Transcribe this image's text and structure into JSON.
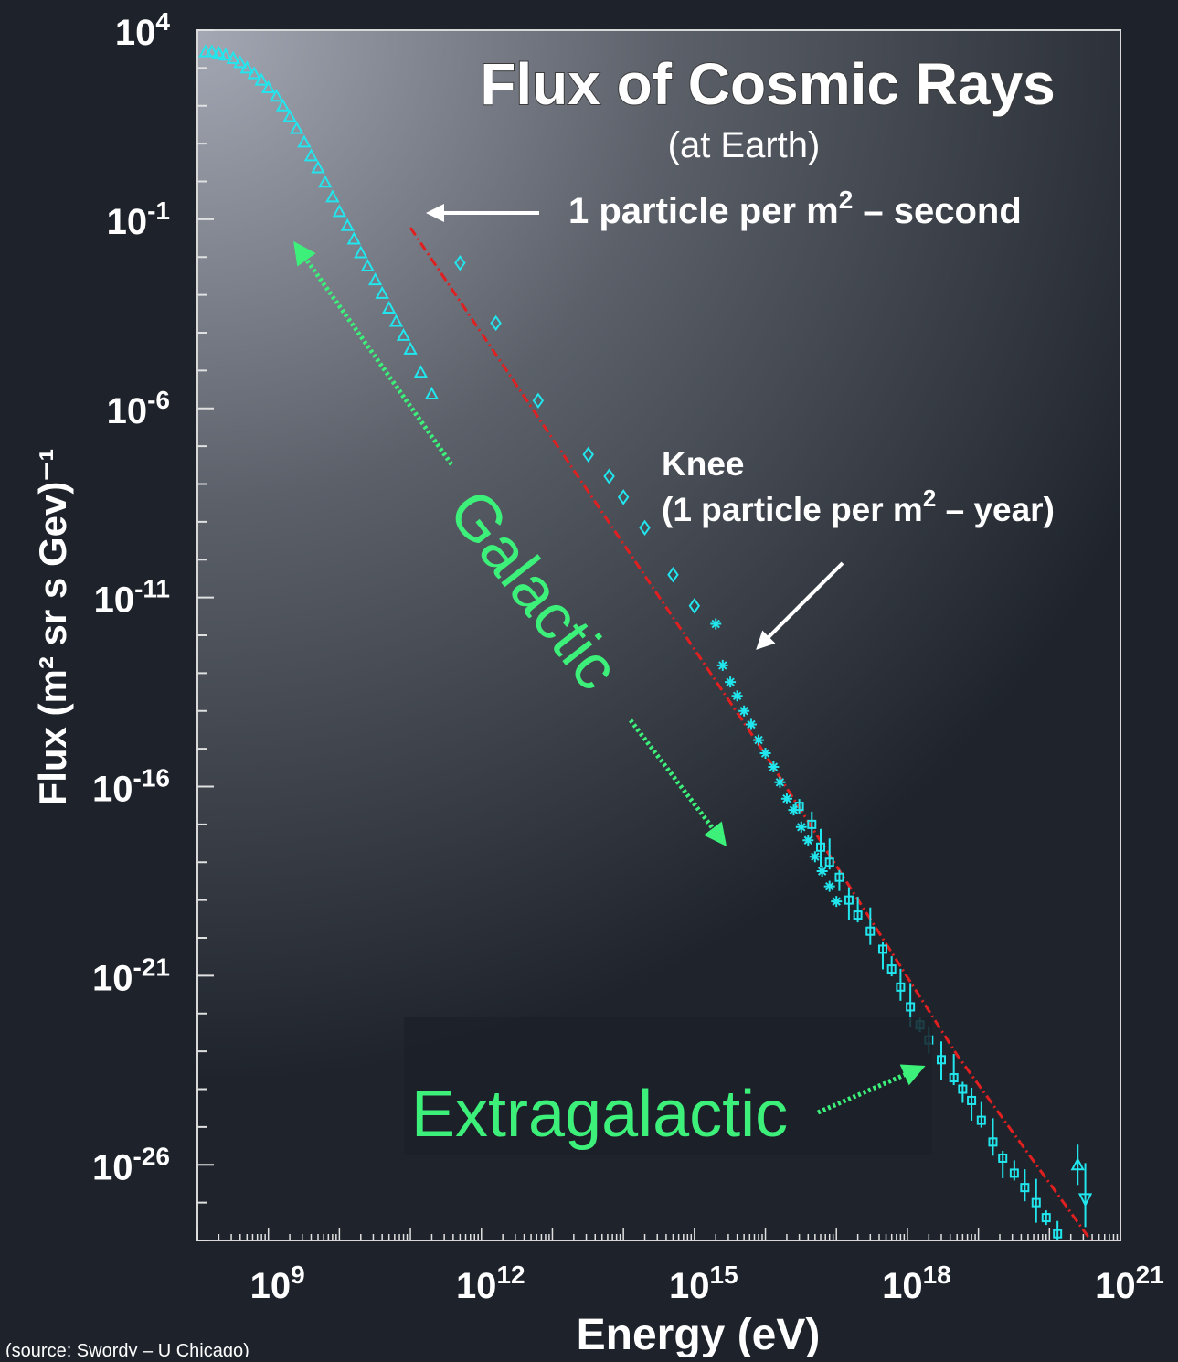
{
  "chart_data": {
    "type": "scatter",
    "title": "Flux of Cosmic Rays",
    "subtitle": "(at Earth)",
    "xlabel": "Energy (eV)",
    "ylabel": "Flux (m² sr s Gev)⁻¹",
    "x_scale": "log",
    "y_scale": "log",
    "xlim": [
      100000000.0,
      1e+21
    ],
    "ylim": [
      1e-28,
      10000.0
    ],
    "grid": false,
    "x_ticks": [
      {
        "value": 1000000000.0,
        "base": "10",
        "exp": "9"
      },
      {
        "value": 1000000000000.0,
        "base": "10",
        "exp": "12"
      },
      {
        "value": 1000000000000000.0,
        "base": "10",
        "exp": "15"
      },
      {
        "value": 1e+18,
        "base": "10",
        "exp": "18"
      },
      {
        "value": 1e+21,
        "base": "10",
        "exp": "21"
      }
    ],
    "y_ticks": [
      {
        "value": 10000.0,
        "base": "10",
        "exp": "4"
      },
      {
        "value": 0.1,
        "base": "10",
        "exp": "-1"
      },
      {
        "value": 1e-06,
        "base": "10",
        "exp": "-6"
      },
      {
        "value": 1e-11,
        "base": "10",
        "exp": "-11"
      },
      {
        "value": 1e-16,
        "base": "10",
        "exp": "-16"
      },
      {
        "value": 1e-21,
        "base": "10",
        "exp": "-21"
      },
      {
        "value": 1e-26,
        "base": "10",
        "exp": "-26"
      }
    ],
    "series": [
      {
        "marker": "triangle",
        "color": "#22e6ee",
        "x": [
          130000000.0,
          160000000.0,
          200000000.0,
          250000000.0,
          320000000.0,
          400000000.0,
          500000000.0,
          630000000.0,
          800000000.0,
          1000000000.0,
          1300000000.0,
          1600000000.0,
          2000000000.0,
          2500000000.0,
          3200000000.0,
          4000000000.0,
          5000000000.0,
          6300000000.0,
          8000000000.0,
          10000000000.0,
          13000000000.0,
          16000000000.0,
          20000000000.0,
          25000000000.0,
          32000000000.0,
          40000000000.0,
          50000000000.0,
          63000000000.0,
          80000000000.0,
          100000000000.0,
          140000000000.0,
          200000000000.0
        ],
        "y": [
          2700.0,
          2700.0,
          2500.0,
          2200.0,
          1800.0,
          1400.0,
          1000.0,
          710.0,
          480.0,
          300.0,
          180.0,
          100.0,
          52.0,
          25.0,
          11.0,
          4.8,
          2.3,
          0.96,
          0.39,
          0.16,
          0.068,
          0.03,
          0.013,
          0.0058,
          0.0025,
          0.0011,
          0.00045,
          0.0002,
          8.5e-05,
          3.7e-05,
          9e-06,
          2.4e-06
        ]
      },
      {
        "marker": "diamond",
        "color": "#22e6ee",
        "x": [
          500000000000.0,
          1600000000000.0,
          6300000000000.0,
          32000000000000.0,
          63000000000000.0,
          100000000000000.0,
          200000000000000.0,
          500000000000000.0,
          1000000000000000.0
        ],
        "y": [
          0.007,
          0.00018,
          1.6e-06,
          6e-08,
          1.6e-08,
          4.5e-09,
          7e-10,
          4e-11,
          6e-12
        ]
      },
      {
        "marker": "star",
        "color": "#22e6ee",
        "x": [
          2000000000000000.0,
          2500000000000000.0,
          3200000000000000.0,
          4000000000000000.0,
          5000000000000000.0,
          6300000000000000.0,
          8000000000000000.0,
          1e+16,
          1.3e+16,
          1.6e+16,
          2e+16,
          2.5e+16,
          3.2e+16,
          4e+16,
          5e+16,
          6.3e+16,
          8e+16,
          1e+17
        ],
        "y": [
          2e-12,
          1.6e-13,
          5.8e-14,
          2.5e-14,
          1e-14,
          4.4e-15,
          1.7e-15,
          7.6e-16,
          3.3e-16,
          1.3e-16,
          4.8e-17,
          2.4e-17,
          8.5e-18,
          3.8e-18,
          1.4e-18,
          5.8e-19,
          2.3e-19,
          9.2e-20
        ]
      },
      {
        "marker": "square",
        "color": "#22e6ee",
        "x": [
          3e+16,
          4.5e+16,
          6e+16,
          8e+16,
          1.1e+17,
          1.5e+17,
          2e+17,
          3e+17,
          4.5e+17,
          6e+17,
          8e+17,
          1.1e+18,
          1.5e+18,
          2e+18,
          3e+18,
          4.5e+18,
          6e+18,
          8e+18,
          1.1e+19,
          1.6e+19,
          2.2e+19,
          3.2e+19,
          4.5e+19,
          6.5e+19,
          9e+19,
          1.3e+20
        ],
        "y": [
          3e-17,
          1e-17,
          2.5e-18,
          1e-18,
          4e-19,
          1e-19,
          4e-20,
          1.5e-20,
          5e-21,
          1.5e-21,
          5e-22,
          1.5e-22,
          5e-23,
          2e-23,
          6e-24,
          2e-24,
          1e-24,
          5e-25,
          1.5e-25,
          4e-26,
          1.5e-26,
          6e-27,
          2.5e-27,
          1e-27,
          4e-28,
          1.5e-28
        ]
      },
      {
        "marker": "open-triangle-errorbar",
        "color": "#22e6ee",
        "x": [
          2.5e+20
        ],
        "y": [
          1e-26
        ]
      },
      {
        "marker": "down-triangle-errorbar",
        "color": "#22e6ee",
        "x": [
          3.2e+20
        ],
        "y": [
          1.2e-27
        ]
      },
      {
        "name": "fit",
        "type": "line",
        "style": "dash-dot",
        "color": "#e02020",
        "x": [
          100000000000.0,
          1e+16,
          5e+18,
          5e+20
        ],
        "y": [
          0.06,
          7e-16,
          8e-24,
          5e-29
        ]
      }
    ],
    "annotations": {
      "second_prefix": "1 particle per m",
      "second_sup": "2",
      "second_suffix": " – second",
      "knee_title": "Knee",
      "knee_prefix": "(1 particle per m",
      "knee_sup": "2",
      "knee_suffix": " – year)",
      "galactic": "Galactic",
      "extragalactic": "Extragalactic"
    },
    "source": "(source: Swordy – U Chicago)",
    "colors": {
      "marker": "#22e6ee",
      "fit_line": "#e02020",
      "region_text": "#3cf07a",
      "annotation": "#ffffff",
      "background": "#1d222b"
    }
  }
}
